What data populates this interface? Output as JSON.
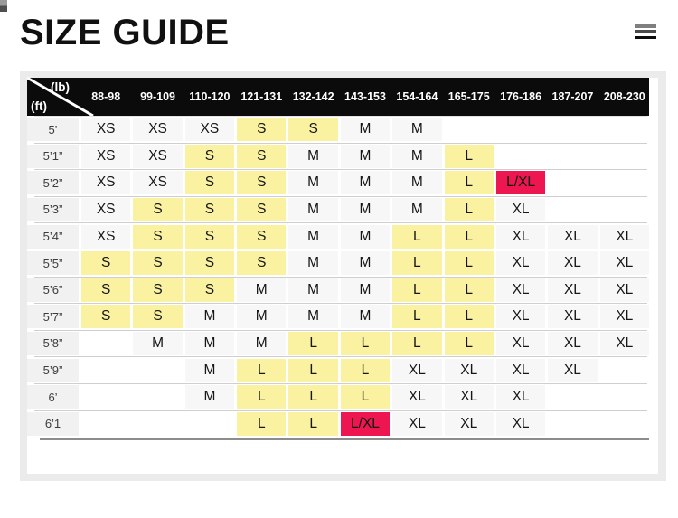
{
  "header": {
    "title": "SIZE GUIDE",
    "menu_icon": "hamburger-menu"
  },
  "size_table": {
    "corner": {
      "weight_unit": "(lb)",
      "height_unit": "(ft)"
    },
    "weight_columns": [
      "88-98",
      "99-109",
      "110-120",
      "121-131",
      "132-142",
      "143-153",
      "154-164",
      "165-175",
      "176-186",
      "187-207",
      "208-230"
    ],
    "rows": [
      {
        "height": "5’",
        "cells": [
          {
            "v": "XS"
          },
          {
            "v": "XS"
          },
          {
            "v": "XS"
          },
          {
            "v": "S",
            "hl": "yellow"
          },
          {
            "v": "S",
            "hl": "yellow"
          },
          {
            "v": "M"
          },
          {
            "v": "M"
          },
          null,
          null,
          null,
          null
        ]
      },
      {
        "height": "5’1”",
        "cells": [
          {
            "v": "XS"
          },
          {
            "v": "XS"
          },
          {
            "v": "S",
            "hl": "yellow"
          },
          {
            "v": "S",
            "hl": "yellow"
          },
          {
            "v": "M"
          },
          {
            "v": "M"
          },
          {
            "v": "M"
          },
          {
            "v": "L",
            "hl": "yellow"
          },
          null,
          null,
          null
        ]
      },
      {
        "height": "5’2”",
        "cells": [
          {
            "v": "XS"
          },
          {
            "v": "XS"
          },
          {
            "v": "S",
            "hl": "yellow"
          },
          {
            "v": "S",
            "hl": "yellow"
          },
          {
            "v": "M"
          },
          {
            "v": "M"
          },
          {
            "v": "M"
          },
          {
            "v": "L",
            "hl": "yellow"
          },
          {
            "v": "L/XL",
            "hl": "red"
          },
          null,
          null
        ]
      },
      {
        "height": "5’3”",
        "cells": [
          {
            "v": "XS"
          },
          {
            "v": "S",
            "hl": "yellow"
          },
          {
            "v": "S",
            "hl": "yellow"
          },
          {
            "v": "S",
            "hl": "yellow"
          },
          {
            "v": "M"
          },
          {
            "v": "M"
          },
          {
            "v": "M"
          },
          {
            "v": "L",
            "hl": "yellow"
          },
          {
            "v": "XL"
          },
          null,
          null
        ]
      },
      {
        "height": "5’4”",
        "cells": [
          {
            "v": "XS"
          },
          {
            "v": "S",
            "hl": "yellow"
          },
          {
            "v": "S",
            "hl": "yellow"
          },
          {
            "v": "S",
            "hl": "yellow"
          },
          {
            "v": "M"
          },
          {
            "v": "M"
          },
          {
            "v": "L",
            "hl": "yellow"
          },
          {
            "v": "L",
            "hl": "yellow"
          },
          {
            "v": "XL"
          },
          {
            "v": "XL"
          },
          {
            "v": "XL"
          }
        ]
      },
      {
        "height": "5’5”",
        "cells": [
          {
            "v": "S",
            "hl": "yellow"
          },
          {
            "v": "S",
            "hl": "yellow"
          },
          {
            "v": "S",
            "hl": "yellow"
          },
          {
            "v": "S",
            "hl": "yellow"
          },
          {
            "v": "M"
          },
          {
            "v": "M"
          },
          {
            "v": "L",
            "hl": "yellow"
          },
          {
            "v": "L",
            "hl": "yellow"
          },
          {
            "v": "XL"
          },
          {
            "v": "XL"
          },
          {
            "v": "XL"
          }
        ]
      },
      {
        "height": "5’6”",
        "cells": [
          {
            "v": "S",
            "hl": "yellow"
          },
          {
            "v": "S",
            "hl": "yellow"
          },
          {
            "v": "S",
            "hl": "yellow"
          },
          {
            "v": "M"
          },
          {
            "v": "M"
          },
          {
            "v": "M"
          },
          {
            "v": "L",
            "hl": "yellow"
          },
          {
            "v": "L",
            "hl": "yellow"
          },
          {
            "v": "XL"
          },
          {
            "v": "XL"
          },
          {
            "v": "XL"
          }
        ]
      },
      {
        "height": "5’7”",
        "cells": [
          {
            "v": "S",
            "hl": "yellow"
          },
          {
            "v": "S",
            "hl": "yellow"
          },
          {
            "v": "M"
          },
          {
            "v": "M"
          },
          {
            "v": "M"
          },
          {
            "v": "M"
          },
          {
            "v": "L",
            "hl": "yellow"
          },
          {
            "v": "L",
            "hl": "yellow"
          },
          {
            "v": "XL"
          },
          {
            "v": "XL"
          },
          {
            "v": "XL"
          }
        ]
      },
      {
        "height": "5’8”",
        "cells": [
          null,
          {
            "v": "M"
          },
          {
            "v": "M"
          },
          {
            "v": "M"
          },
          {
            "v": "L",
            "hl": "yellow"
          },
          {
            "v": "L",
            "hl": "yellow"
          },
          {
            "v": "L",
            "hl": "yellow"
          },
          {
            "v": "L",
            "hl": "yellow"
          },
          {
            "v": "XL"
          },
          {
            "v": "XL"
          },
          {
            "v": "XL"
          }
        ]
      },
      {
        "height": "5’9”",
        "cells": [
          null,
          null,
          {
            "v": "M"
          },
          {
            "v": "L",
            "hl": "yellow"
          },
          {
            "v": "L",
            "hl": "yellow"
          },
          {
            "v": "L",
            "hl": "yellow"
          },
          {
            "v": "XL"
          },
          {
            "v": "XL"
          },
          {
            "v": "XL"
          },
          {
            "v": "XL"
          },
          null
        ]
      },
      {
        "height": "6’",
        "cells": [
          null,
          null,
          {
            "v": "M"
          },
          {
            "v": "L",
            "hl": "yellow"
          },
          {
            "v": "L",
            "hl": "yellow"
          },
          {
            "v": "L",
            "hl": "yellow"
          },
          {
            "v": "XL"
          },
          {
            "v": "XL"
          },
          {
            "v": "XL"
          },
          null,
          null
        ]
      },
      {
        "height": "6’1",
        "cells": [
          null,
          null,
          null,
          {
            "v": "L",
            "hl": "yellow"
          },
          {
            "v": "L",
            "hl": "yellow"
          },
          {
            "v": "L/XL",
            "hl": "red"
          },
          {
            "v": "XL"
          },
          {
            "v": "XL"
          },
          {
            "v": "XL"
          },
          null,
          null
        ]
      }
    ]
  },
  "colors": {
    "highlight_yellow": "#FAF1A1",
    "highlight_red": "#ED1650",
    "table_header_bg": "#0B0B0B",
    "panel_bg": "#EBEBEB",
    "filled_cell_bg": "#F7F7F7",
    "row_label_bg": "#F1F1F1"
  }
}
